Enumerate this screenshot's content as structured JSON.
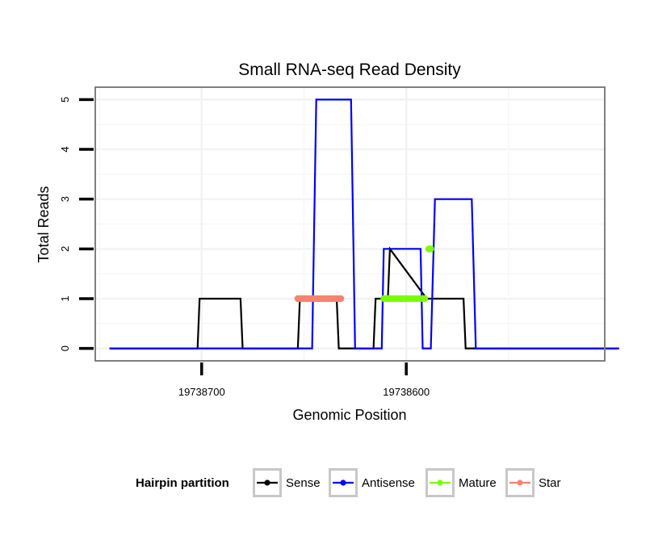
{
  "chart_data": {
    "type": "line",
    "title": "Small RNA-seq Read Density",
    "xlabel": "Genomic Position",
    "ylabel": "Total Reads",
    "x_reversed": true,
    "xlim": [
      19738752,
      19738503
    ],
    "ylim": [
      -0.25,
      5.25
    ],
    "x_ticks": [
      19738700,
      19738600
    ],
    "x_tick_labels": [
      "19738700",
      "19738600"
    ],
    "y_ticks": [
      0,
      1,
      2,
      3,
      4,
      5
    ],
    "y_tick_labels": [
      "0",
      "1",
      "2",
      "3",
      "4",
      "5"
    ],
    "legend": {
      "title": "Hairpin partition",
      "position": "bottom",
      "entries": [
        "Sense",
        "Antisense",
        "Mature",
        "Star"
      ]
    },
    "series": [
      {
        "name": "Sense",
        "color": "#000000",
        "kind": "line",
        "x": [
          19738745,
          19738702,
          19738701,
          19738681,
          19738680,
          19738653,
          19738652,
          19738634,
          19738633,
          19738616,
          19738615,
          19738609,
          19738608,
          19738590,
          19738589,
          19738572,
          19738571,
          19738496
        ],
        "y": [
          0,
          0,
          1,
          1,
          0,
          0,
          1,
          1,
          0,
          0,
          1,
          1,
          2,
          1,
          1,
          1,
          0,
          0
        ]
      },
      {
        "name": "Antisense",
        "color": "#0000ff",
        "kind": "line",
        "x": [
          19738745,
          19738646,
          19738644,
          19738627,
          19738625,
          19738619,
          19738612,
          19738611,
          19738593,
          19738592,
          19738588,
          19738586,
          19738568,
          19738566,
          19738496
        ],
        "y": [
          0,
          0,
          5,
          5,
          0,
          0,
          0,
          2,
          2,
          0,
          0,
          3,
          3,
          0,
          0
        ]
      },
      {
        "name": "Mature",
        "color": "#7cfc00",
        "kind": "points",
        "x": [
          19738611,
          19738610,
          19738609,
          19738608,
          19738607,
          19738606,
          19738605,
          19738604,
          19738603,
          19738602,
          19738601,
          19738600,
          19738599,
          19738598,
          19738597,
          19738596,
          19738595,
          19738594,
          19738593,
          19738592,
          19738591,
          19738589,
          19738588
        ],
        "y": [
          1,
          1,
          1,
          1,
          1,
          1,
          1,
          1,
          1,
          1,
          1,
          1,
          1,
          1,
          1,
          1,
          1,
          1,
          1,
          1,
          1,
          2,
          2
        ]
      },
      {
        "name": "Star",
        "color": "#fa8072",
        "kind": "points",
        "x": [
          19738653,
          19738652,
          19738651,
          19738650,
          19738649,
          19738648,
          19738647,
          19738646,
          19738645,
          19738644,
          19738643,
          19738642,
          19738641,
          19738640,
          19738639,
          19738638,
          19738637,
          19738636,
          19738635,
          19738634,
          19738633,
          19738632
        ],
        "y": [
          1,
          1,
          1,
          1,
          1,
          1,
          1,
          1,
          1,
          1,
          1,
          1,
          1,
          1,
          1,
          1,
          1,
          1,
          1,
          1,
          1,
          1
        ]
      }
    ]
  }
}
